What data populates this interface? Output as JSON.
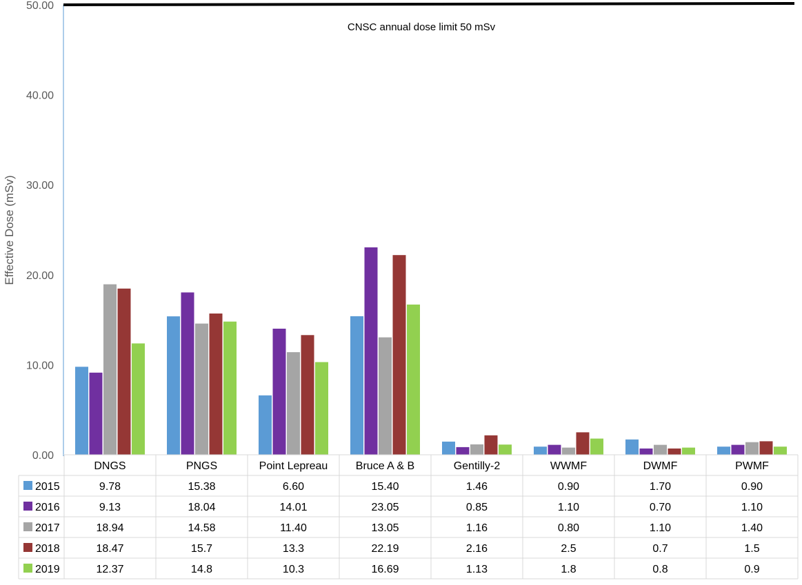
{
  "chart_data": {
    "type": "bar",
    "title": "",
    "ylabel": "Effective Dose (mSv)",
    "xlabel": "",
    "ylim": [
      0,
      50
    ],
    "yticks": [
      "50.00",
      "40.00",
      "30.00",
      "20.00",
      "10.00",
      "0.00"
    ],
    "ytick_values": [
      50,
      40,
      30,
      20,
      10,
      0
    ],
    "categories": [
      "DNGS",
      "PNGS",
      "Point Lepreau",
      "Bruce A & B",
      "Gentilly-2",
      "WWMF",
      "DWMF",
      "PWMF"
    ],
    "series": [
      {
        "name": "2015",
        "color": "#5B9BD5",
        "values": [
          9.78,
          15.38,
          6.6,
          15.4,
          1.46,
          0.9,
          1.7,
          0.9
        ],
        "labels": [
          "9.78",
          "15.38",
          "6.60",
          "15.40",
          "1.46",
          "0.90",
          "1.70",
          "0.90"
        ]
      },
      {
        "name": "2016",
        "color": "#7030A0",
        "values": [
          9.13,
          18.04,
          14.01,
          23.05,
          0.85,
          1.1,
          0.7,
          1.1
        ],
        "labels": [
          "9.13",
          "18.04",
          "14.01",
          "23.05",
          "0.85",
          "1.10",
          "0.70",
          "1.10"
        ]
      },
      {
        "name": "2017",
        "color": "#A5A5A5",
        "values": [
          18.94,
          14.58,
          11.4,
          13.05,
          1.16,
          0.8,
          1.1,
          1.4
        ],
        "labels": [
          "18.94",
          "14.58",
          "11.40",
          "13.05",
          "1.16",
          "0.80",
          "1.10",
          "1.40"
        ]
      },
      {
        "name": "2018",
        "color": "#953735",
        "values": [
          18.47,
          15.7,
          13.3,
          22.19,
          2.16,
          2.5,
          0.7,
          1.5
        ],
        "labels": [
          "18.47",
          "15.7",
          "13.3",
          "22.19",
          "2.16",
          "2.5",
          "0.7",
          "1.5"
        ]
      },
      {
        "name": "2019",
        "color": "#92D050",
        "values": [
          12.37,
          14.8,
          10.3,
          16.69,
          1.13,
          1.8,
          0.8,
          0.9
        ],
        "labels": [
          "12.37",
          "14.8",
          "10.3",
          "16.69",
          "1.13",
          "1.8",
          "0.8",
          "0.9"
        ]
      }
    ],
    "reference_line": {
      "value": 50,
      "label": "CNSC annual dose limit 50 mSv",
      "color": "#000000"
    },
    "data_table": true,
    "legend": "data-table",
    "grid": false
  }
}
